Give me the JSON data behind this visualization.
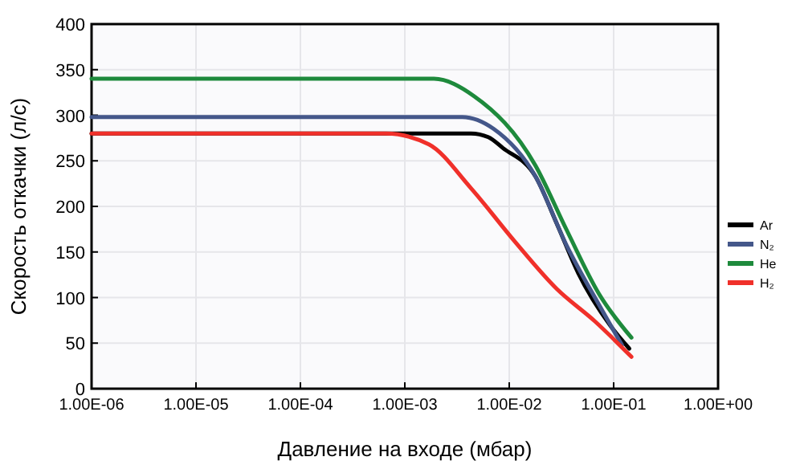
{
  "chart_data": {
    "type": "line",
    "xlabel": "Давление на входе (мбар)",
    "ylabel": "Скорость откачки (л/с)",
    "log": "x",
    "xlim": [
      1e-06,
      1
    ],
    "xticks": [
      {
        "value": 1e-06,
        "label": "1.00E-06"
      },
      {
        "value": 1e-05,
        "label": "1.00E-05"
      },
      {
        "value": 0.0001,
        "label": "1.00E-04"
      },
      {
        "value": 0.001,
        "label": "1.00E-03"
      },
      {
        "value": 0.01,
        "label": "1.00E-02"
      },
      {
        "value": 0.1,
        "label": "1.00E-01"
      },
      {
        "value": 1,
        "label": "1.00E+00"
      }
    ],
    "ylim": [
      0,
      400
    ],
    "yticks": [
      0,
      50,
      100,
      150,
      200,
      250,
      300,
      350,
      400
    ],
    "grid": true,
    "legend": "right",
    "marker": "none",
    "line_style": "solid",
    "series": [
      {
        "name": "Ar",
        "color": "#000000",
        "x": [
          1e-06,
          0.0043,
          0.0063,
          0.0087,
          0.0178,
          0.0288,
          0.0457,
          0.0933,
          0.141
        ],
        "values": [
          280,
          280,
          276,
          264,
          233,
          180,
          127,
          69,
          44
        ]
      },
      {
        "name": "N₂",
        "color": "#44578a",
        "x": [
          1e-06,
          0.00355,
          0.0071,
          0.0178,
          0.0355,
          0.0724,
          0.12
        ],
        "values": [
          298,
          298,
          285,
          233,
          157,
          92,
          48
        ]
      },
      {
        "name": "He",
        "color": "#1e8a3c",
        "x": [
          1e-06,
          0.0019,
          0.0046,
          0.0178,
          0.0355,
          0.0724,
          0.148
        ],
        "values": [
          340,
          340,
          321,
          245,
          174,
          104,
          56
        ]
      },
      {
        "name": "H₂",
        "color": "#f0302a",
        "x": [
          1e-06,
          0.00066,
          0.0017,
          0.0043,
          0.0112,
          0.0288,
          0.066,
          0.148
        ],
        "values": [
          280,
          280,
          268,
          220,
          162,
          109,
          74,
          35
        ]
      }
    ]
  }
}
